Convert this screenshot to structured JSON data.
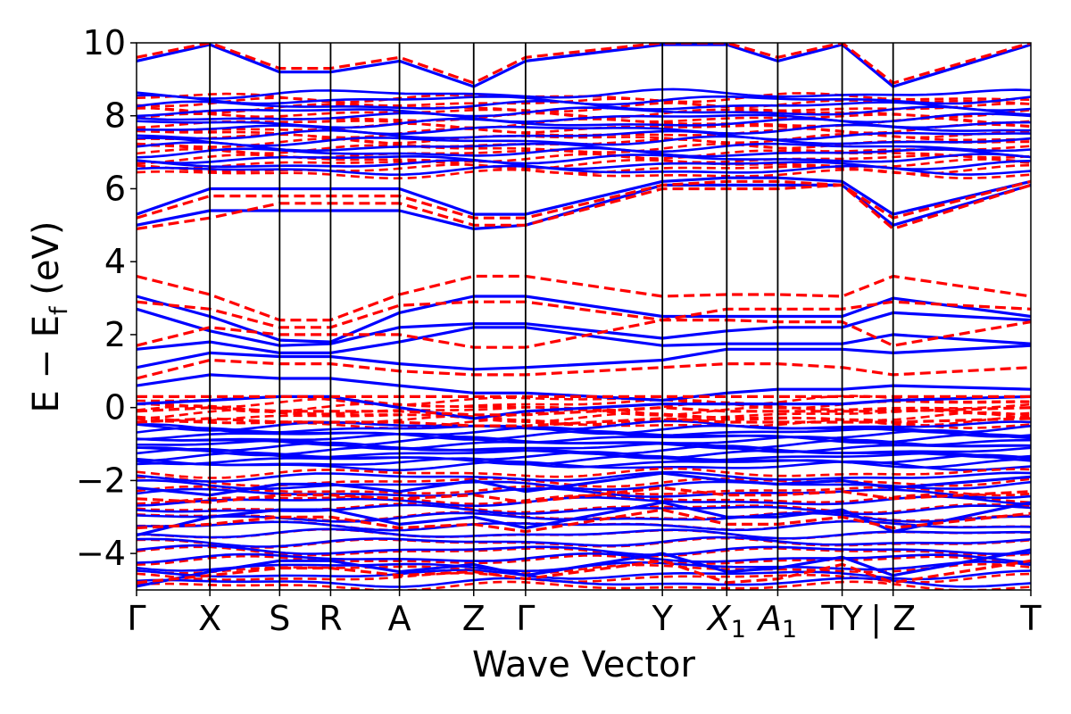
{
  "chart_data": {
    "type": "line",
    "title": "",
    "xlabel": "Wave Vector",
    "ylabel": "E − E",
    "ylabel_sub": "f",
    "ylabel_unit": " (eV)",
    "ylim": [
      -5,
      10
    ],
    "xlim": [
      0,
      1
    ],
    "yticks": [
      {
        "value": -4,
        "label": "−4"
      },
      {
        "value": -2,
        "label": "−2"
      },
      {
        "value": 0,
        "label": "0"
      },
      {
        "value": 2,
        "label": "2"
      },
      {
        "value": 4,
        "label": "4"
      },
      {
        "value": 6,
        "label": "6"
      },
      {
        "value": 8,
        "label": "8"
      },
      {
        "value": 10,
        "label": "10"
      }
    ],
    "kpoints": [
      {
        "x": 0.0,
        "label": "Γ",
        "sub": ""
      },
      {
        "x": 0.082,
        "label": "X",
        "sub": ""
      },
      {
        "x": 0.16,
        "label": "S",
        "sub": ""
      },
      {
        "x": 0.217,
        "label": "R",
        "sub": ""
      },
      {
        "x": 0.294,
        "label": "A",
        "sub": ""
      },
      {
        "x": 0.377,
        "label": "Z",
        "sub": ""
      },
      {
        "x": 0.435,
        "label": "Γ",
        "sub": ""
      },
      {
        "x": 0.588,
        "label": "Y",
        "sub": ""
      },
      {
        "x": 0.66,
        "label": "X",
        "sub": "1",
        "italic": true
      },
      {
        "x": 0.717,
        "label": "A",
        "sub": "1",
        "italic": true
      },
      {
        "x": 0.789,
        "label": "TY",
        "sub": ""
      },
      {
        "x": 0.846,
        "label": "| Z",
        "sub": ""
      },
      {
        "x": 1.0,
        "label": "T",
        "sub": ""
      }
    ],
    "series": [
      {
        "style": "solid",
        "color": "#0000ff",
        "bands": [
          {
            "x": [
              0,
              0.082,
              0.16,
              0.217,
              0.294,
              0.377,
              0.435,
              0.588,
              0.66,
              0.717,
              0.789,
              0.846,
              1.0
            ],
            "y": [
              3.05,
              2.5,
              1.85,
              1.8,
              2.6,
              3.05,
              3.05,
              2.5,
              2.5,
              2.5,
              2.5,
              3.0,
              2.5
            ]
          },
          {
            "x": [
              0,
              0.082,
              0.16,
              0.217,
              0.294,
              0.377,
              0.435,
              0.588,
              0.66,
              0.717,
              0.789,
              0.846,
              1.0
            ],
            "y": [
              2.7,
              2.1,
              1.7,
              1.75,
              2.2,
              2.3,
              2.3,
              1.9,
              2.1,
              2.2,
              2.2,
              2.6,
              2.4
            ]
          },
          {
            "x": [
              0,
              0.082,
              0.16,
              0.217,
              0.294,
              0.377,
              0.435,
              0.588,
              0.66,
              0.717,
              0.789,
              0.846,
              1.0
            ],
            "y": [
              1.6,
              1.8,
              1.5,
              1.5,
              1.8,
              2.2,
              2.2,
              1.7,
              1.75,
              1.75,
              1.75,
              2.0,
              1.75
            ]
          },
          {
            "x": [
              0,
              0.082,
              0.16,
              0.217,
              0.294,
              0.377,
              0.435,
              0.588,
              0.66,
              0.717,
              0.789,
              0.846,
              1.0
            ],
            "y": [
              1.1,
              1.5,
              1.4,
              1.4,
              1.2,
              1.05,
              1.1,
              1.3,
              1.6,
              1.6,
              1.6,
              1.5,
              1.7
            ]
          },
          {
            "x": [
              0,
              0.082,
              0.16,
              0.217,
              0.294,
              0.377,
              0.435,
              0.588,
              0.66,
              0.717,
              0.789,
              0.846,
              1.0
            ],
            "y": [
              0.6,
              0.9,
              0.8,
              0.8,
              0.6,
              0.4,
              0.4,
              0.2,
              0.4,
              0.5,
              0.5,
              0.6,
              0.5
            ]
          },
          {
            "x": [
              0,
              0.082,
              0.16,
              0.217,
              0.294,
              0.377,
              0.435,
              0.588,
              0.66,
              0.717,
              0.789,
              0.846,
              1.0
            ],
            "y": [
              0.1,
              0.2,
              0.3,
              0.3,
              0.0,
              -0.3,
              -0.1,
              0.1,
              0.1,
              0.1,
              0.1,
              0.2,
              0.3
            ]
          },
          {
            "x": [
              0,
              0.082,
              0.16,
              0.217,
              0.294,
              0.377,
              0.435,
              0.588,
              0.66,
              0.717,
              0.789,
              0.846,
              1.0
            ],
            "y": [
              5.0,
              5.4,
              5.4,
              5.4,
              5.4,
              4.9,
              5.0,
              6.1,
              6.1,
              6.1,
              6.1,
              5.0,
              6.1
            ]
          },
          {
            "x": [
              0,
              0.082,
              0.16,
              0.217,
              0.294,
              0.377,
              0.435,
              0.588,
              0.66,
              0.717,
              0.789,
              0.846,
              1.0
            ],
            "y": [
              5.3,
              6.0,
              6.0,
              6.0,
              6.0,
              5.3,
              5.3,
              6.2,
              6.3,
              6.3,
              6.2,
              5.3,
              6.2
            ]
          },
          {
            "x": [
              0,
              0.082,
              0.16,
              0.217,
              0.294,
              0.377,
              0.435,
              0.588,
              0.66,
              0.717,
              0.789,
              0.846,
              1.0
            ],
            "y": [
              9.5,
              9.95,
              9.2,
              9.2,
              9.5,
              8.8,
              9.5,
              9.95,
              9.95,
              9.5,
              9.95,
              8.8,
              9.95
            ]
          },
          {
            "x": [
              0,
              0.082,
              0.16,
              0.217,
              0.294,
              0.377,
              0.435,
              0.588,
              0.66,
              0.717,
              0.789,
              0.846,
              1.0
            ],
            "y": [
              -4.9,
              -4.5,
              -4.2,
              -4.2,
              -4.5,
              -4.3,
              -4.6,
              -4.0,
              -4.5,
              -4.4,
              -4.1,
              -4.6,
              -3.9
            ]
          },
          {
            "x": [
              0,
              0.082,
              0.16,
              0.217,
              0.294,
              0.377,
              0.435,
              0.588,
              0.66,
              0.717,
              0.789,
              0.846,
              1.0
            ],
            "y": [
              -3.5,
              -3.0,
              -2.8,
              -2.8,
              -3.2,
              -3.0,
              -3.3,
              -2.6,
              -3.0,
              -3.0,
              -2.8,
              -3.4,
              -2.6
            ]
          },
          {
            "x": [
              0,
              0.082,
              0.16,
              0.217,
              0.294,
              0.377,
              0.435,
              0.588,
              0.66,
              0.717,
              0.789,
              0.846,
              1.0
            ],
            "y": [
              -2.2,
              -2.4,
              -2.1,
              -2.1,
              -2.3,
              -2.0,
              -2.3,
              -1.8,
              -2.0,
              -2.1,
              -2.0,
              -2.2,
              -1.9
            ]
          }
        ]
      },
      {
        "style": "dashed",
        "color": "#ff0000",
        "bands": [
          {
            "x": [
              0,
              0.082,
              0.16,
              0.217,
              0.294,
              0.377,
              0.435,
              0.588,
              0.66,
              0.717,
              0.789,
              0.846,
              1.0
            ],
            "y": [
              3.6,
              3.1,
              2.4,
              2.4,
              3.1,
              3.6,
              3.6,
              3.05,
              3.1,
              3.1,
              3.05,
              3.6,
              3.05
            ]
          },
          {
            "x": [
              0,
              0.082,
              0.16,
              0.217,
              0.294,
              0.377,
              0.435,
              0.588,
              0.66,
              0.717,
              0.789,
              0.846,
              1.0
            ],
            "y": [
              2.9,
              2.7,
              2.2,
              2.2,
              2.8,
              2.9,
              2.9,
              2.4,
              2.7,
              2.7,
              2.7,
              2.9,
              2.7
            ]
          },
          {
            "x": [
              0,
              0.082,
              0.16,
              0.217,
              0.294,
              0.377,
              0.435,
              0.588,
              0.66,
              0.717,
              0.789,
              0.846,
              1.0
            ],
            "y": [
              1.7,
              2.2,
              2.0,
              2.0,
              2.0,
              1.65,
              1.65,
              2.4,
              2.4,
              2.35,
              2.35,
              1.7,
              2.35
            ]
          },
          {
            "x": [
              0,
              0.082,
              0.16,
              0.217,
              0.294,
              0.377,
              0.435,
              0.588,
              0.66,
              0.717,
              0.789,
              0.846,
              1.0
            ],
            "y": [
              0.8,
              1.3,
              1.2,
              1.2,
              1.0,
              0.9,
              0.9,
              1.1,
              1.2,
              1.2,
              1.1,
              0.9,
              1.1
            ]
          },
          {
            "x": [
              0,
              0.082,
              0.16,
              0.217,
              0.294,
              0.377,
              0.435,
              0.588,
              0.66,
              0.717,
              0.789,
              0.846,
              1.0
            ],
            "y": [
              0.3,
              0.3,
              0.3,
              0.3,
              0.3,
              0.3,
              0.3,
              0.3,
              0.3,
              0.3,
              0.3,
              0.3,
              0.3
            ]
          },
          {
            "x": [
              0,
              0.082,
              0.16,
              0.217,
              0.294,
              0.377,
              0.435,
              0.588,
              0.66,
              0.717,
              0.789,
              0.846,
              1.0
            ],
            "y": [
              -0.1,
              0.0,
              -0.1,
              -0.1,
              -0.1,
              -0.2,
              -0.2,
              0.0,
              -0.1,
              -0.1,
              -0.1,
              -0.1,
              0.0
            ]
          },
          {
            "x": [
              0,
              0.082,
              0.16,
              0.217,
              0.294,
              0.377,
              0.435,
              0.588,
              0.66,
              0.717,
              0.789,
              0.846,
              1.0
            ],
            "y": [
              -0.4,
              -0.3,
              -0.4,
              -0.4,
              -0.4,
              -0.5,
              -0.5,
              -0.3,
              -0.4,
              -0.4,
              -0.4,
              -0.4,
              -0.3
            ]
          },
          {
            "x": [
              0,
              0.082,
              0.16,
              0.217,
              0.294,
              0.377,
              0.435,
              0.588,
              0.66,
              0.717,
              0.789,
              0.846,
              1.0
            ],
            "y": [
              4.9,
              5.2,
              5.6,
              5.6,
              5.6,
              5.0,
              5.0,
              6.0,
              6.0,
              6.0,
              6.1,
              4.9,
              6.1
            ]
          },
          {
            "x": [
              0,
              0.082,
              0.16,
              0.217,
              0.294,
              0.377,
              0.435,
              0.588,
              0.66,
              0.717,
              0.789,
              0.846,
              1.0
            ],
            "y": [
              5.2,
              5.8,
              5.8,
              5.8,
              5.8,
              5.2,
              5.2,
              6.1,
              6.2,
              6.2,
              6.1,
              5.2,
              6.2
            ]
          },
          {
            "x": [
              0,
              0.082,
              0.16,
              0.217,
              0.294,
              0.377,
              0.435,
              0.588,
              0.66,
              0.717,
              0.789,
              0.846,
              1.0
            ],
            "y": [
              9.6,
              10.0,
              9.3,
              9.3,
              9.6,
              8.9,
              9.6,
              10.0,
              10.0,
              9.6,
              10.0,
              8.9,
              10.0
            ]
          },
          {
            "x": [
              0,
              0.082,
              0.16,
              0.217,
              0.294,
              0.377,
              0.435,
              0.588,
              0.66,
              0.717,
              0.789,
              0.846,
              1.0
            ],
            "y": [
              -4.8,
              -4.6,
              -4.4,
              -4.4,
              -4.6,
              -4.5,
              -4.7,
              -4.2,
              -4.8,
              -4.7,
              -4.3,
              -4.8,
              -4.2
            ]
          },
          {
            "x": [
              0,
              0.082,
              0.16,
              0.217,
              0.294,
              0.377,
              0.435,
              0.588,
              0.66,
              0.717,
              0.789,
              0.846,
              1.0
            ],
            "y": [
              -3.3,
              -3.2,
              -3.0,
              -3.0,
              -3.3,
              -3.2,
              -3.4,
              -2.8,
              -3.2,
              -3.2,
              -3.0,
              -3.3,
              -2.9
            ]
          },
          {
            "x": [
              0,
              0.082,
              0.16,
              0.217,
              0.294,
              0.377,
              0.435,
              0.588,
              0.66,
              0.717,
              0.789,
              0.846,
              1.0
            ],
            "y": [
              -2.5,
              -2.6,
              -2.4,
              -2.4,
              -2.5,
              -2.4,
              -2.6,
              -2.2,
              -2.4,
              -2.4,
              -2.3,
              -2.5,
              -2.3
            ]
          }
        ]
      }
    ]
  }
}
